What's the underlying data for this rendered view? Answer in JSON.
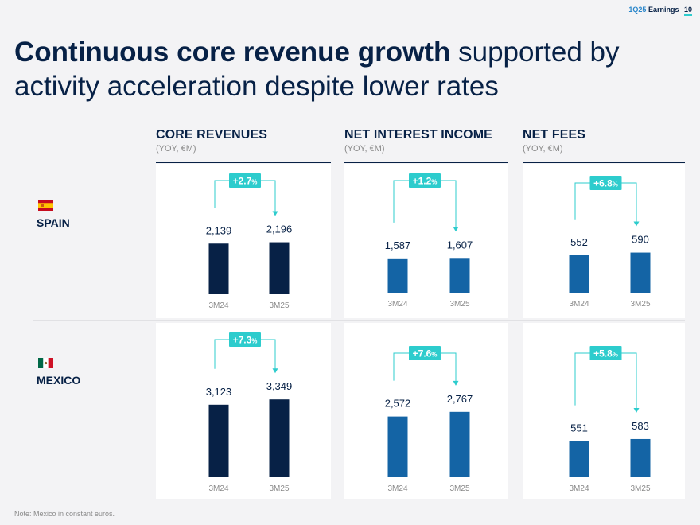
{
  "header": {
    "quarter": "1Q25",
    "section": "Earnings",
    "page": "10"
  },
  "title": {
    "bold": "Continuous core revenue growth",
    "regular": "supported by activity acceleration despite lower rates"
  },
  "columns": [
    {
      "title": "CORE REVENUES",
      "subtitle": "(YOY, €M)"
    },
    {
      "title": "NET INTEREST INCOME",
      "subtitle": "(YOY, €M)"
    },
    {
      "title": "NET FEES",
      "subtitle": "(YOY, €M)"
    }
  ],
  "rows": [
    {
      "label": "SPAIN",
      "flag": "spain-flag-icon"
    },
    {
      "label": "MEXICO",
      "flag": "mexico-flag-icon"
    }
  ],
  "colors": {
    "navy": "#072146",
    "blue": "#1464a5",
    "accent": "#2dcccd",
    "label_grey": "#8a8a8a"
  },
  "chart_data": [
    {
      "type": "bar",
      "row": "SPAIN",
      "metric": "CORE REVENUES",
      "categories": [
        "3M24",
        "3M25"
      ],
      "values": [
        2139,
        2196
      ],
      "labels": [
        "2,139",
        "2,196"
      ],
      "growth": "+2.7",
      "unit": "%"
    },
    {
      "type": "bar",
      "row": "SPAIN",
      "metric": "NET INTEREST INCOME",
      "categories": [
        "3M24",
        "3M25"
      ],
      "values": [
        1587,
        1607
      ],
      "labels": [
        "1,587",
        "1,607"
      ],
      "growth": "+1.2",
      "unit": "%"
    },
    {
      "type": "bar",
      "row": "SPAIN",
      "metric": "NET FEES",
      "categories": [
        "3M24",
        "3M25"
      ],
      "values": [
        552,
        590
      ],
      "labels": [
        "552",
        "590"
      ],
      "growth": "+6.8",
      "unit": "%"
    },
    {
      "type": "bar",
      "row": "MEXICO",
      "metric": "CORE REVENUES",
      "categories": [
        "3M24",
        "3M25"
      ],
      "values": [
        3123,
        3349
      ],
      "labels": [
        "3,123",
        "3,349"
      ],
      "growth": "+7.3",
      "unit": "%"
    },
    {
      "type": "bar",
      "row": "MEXICO",
      "metric": "NET INTEREST INCOME",
      "categories": [
        "3M24",
        "3M25"
      ],
      "values": [
        2572,
        2767
      ],
      "labels": [
        "2,572",
        "2,767"
      ],
      "growth": "+7.6",
      "unit": "%"
    },
    {
      "type": "bar",
      "row": "MEXICO",
      "metric": "NET FEES",
      "categories": [
        "3M24",
        "3M25"
      ],
      "values": [
        551,
        583
      ],
      "labels": [
        "551",
        "583"
      ],
      "growth": "+5.8",
      "unit": "%"
    }
  ],
  "note": "Note: Mexico in constant euros."
}
